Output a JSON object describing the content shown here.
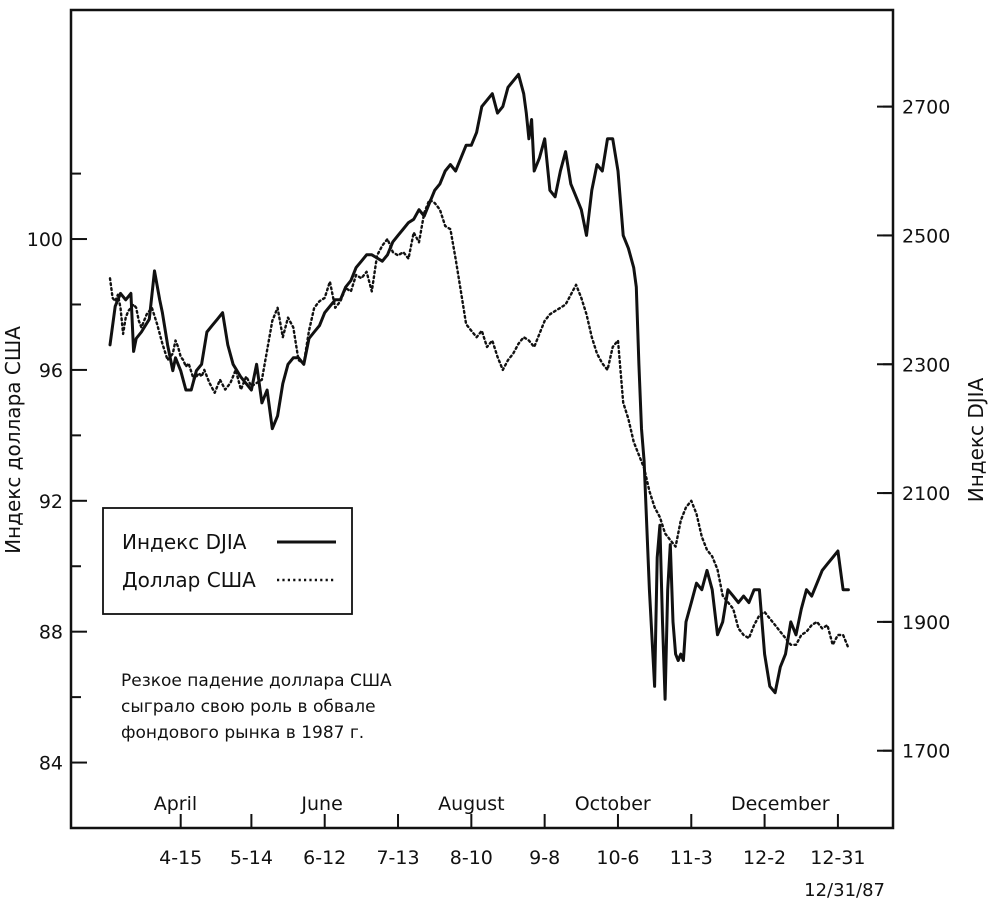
{
  "chart_data": {
    "type": "line",
    "ylabel_left": "Индекс доллара США",
    "ylabel_right": "Индекс DJIA",
    "ylim_left": [
      82,
      107
    ],
    "ylim_right": [
      1580,
      2850
    ],
    "xlim": [
      0,
      283
    ],
    "left_ticks": [
      "84",
      "88",
      "92",
      "96",
      "100"
    ],
    "right_ticks": [
      "1700",
      "1900",
      "2100",
      "2300",
      "2500",
      "2700"
    ],
    "x_ticks": [
      {
        "x": 27,
        "label": "4-15"
      },
      {
        "x": 54,
        "label": "5-14"
      },
      {
        "x": 82,
        "label": "6-12"
      },
      {
        "x": 110,
        "label": "7-13"
      },
      {
        "x": 138,
        "label": "8-10"
      },
      {
        "x": 166,
        "label": "9-8"
      },
      {
        "x": 194,
        "label": "10-6"
      },
      {
        "x": 222,
        "label": "11-3"
      },
      {
        "x": 250,
        "label": "12-2"
      },
      {
        "x": 278,
        "label": "12-31"
      }
    ],
    "months": [
      {
        "x": 25,
        "label": "April"
      },
      {
        "x": 81,
        "label": "June"
      },
      {
        "x": 138,
        "label": "August"
      },
      {
        "x": 192,
        "label": "October"
      },
      {
        "x": 256,
        "label": "December"
      }
    ],
    "date_stamp": "12/31/87",
    "legend": [
      {
        "label": "Индекс DJIA",
        "style": "solid"
      },
      {
        "label": "Доллар США",
        "style": "dotted"
      }
    ],
    "note": [
      "Резкое падение доллара США",
      "сыграло свою роль в обвале",
      "фондового рынка в 1987 г."
    ],
    "series": [
      {
        "name": "Индекс DJIA",
        "axis": "right",
        "style": "solid",
        "x": [
          0,
          2,
          4,
          6,
          8,
          9,
          10,
          12,
          15,
          17,
          19,
          20,
          22,
          24,
          25,
          27,
          29,
          31,
          33,
          35,
          37,
          39,
          41,
          43,
          45,
          47,
          50,
          52,
          54,
          56,
          58,
          60,
          62,
          64,
          66,
          68,
          70,
          72,
          74,
          76,
          78,
          80,
          82,
          84,
          86,
          88,
          90,
          92,
          94,
          96,
          98,
          100,
          102,
          104,
          106,
          108,
          110,
          112,
          114,
          116,
          118,
          120,
          122,
          124,
          126,
          128,
          130,
          132,
          134,
          136,
          138,
          140,
          142,
          144,
          146,
          148,
          150,
          152,
          154,
          156,
          158,
          159,
          160,
          161,
          162,
          164,
          166,
          168,
          170,
          172,
          174,
          176,
          178,
          180,
          182,
          184,
          186,
          188,
          190,
          192,
          194,
          196,
          198,
          200,
          201,
          202,
          203,
          204,
          206,
          208,
          209,
          210,
          211,
          212,
          213,
          214,
          215,
          216,
          217,
          218,
          219,
          220,
          222,
          224,
          226,
          228,
          230,
          232,
          234,
          236,
          238,
          240,
          242,
          244,
          246,
          248,
          250,
          252,
          254,
          256,
          258,
          260,
          262,
          264,
          266,
          268,
          270,
          272,
          274,
          276,
          278,
          280,
          282
        ],
        "y": [
          2330,
          2390,
          2410,
          2400,
          2410,
          2320,
          2340,
          2350,
          2370,
          2445,
          2400,
          2380,
          2330,
          2290,
          2310,
          2290,
          2260,
          2260,
          2290,
          2300,
          2350,
          2360,
          2370,
          2380,
          2330,
          2300,
          2280,
          2270,
          2260,
          2300,
          2240,
          2260,
          2200,
          2220,
          2270,
          2300,
          2310,
          2310,
          2300,
          2340,
          2350,
          2360,
          2380,
          2390,
          2400,
          2400,
          2420,
          2430,
          2450,
          2460,
          2470,
          2470,
          2465,
          2460,
          2470,
          2490,
          2500,
          2510,
          2520,
          2525,
          2540,
          2530,
          2550,
          2570,
          2580,
          2600,
          2610,
          2600,
          2620,
          2640,
          2640,
          2660,
          2700,
          2710,
          2720,
          2690,
          2700,
          2730,
          2740,
          2750,
          2720,
          2690,
          2650,
          2680,
          2600,
          2620,
          2650,
          2570,
          2560,
          2600,
          2630,
          2580,
          2560,
          2540,
          2500,
          2570,
          2610,
          2600,
          2650,
          2650,
          2600,
          2500,
          2480,
          2450,
          2420,
          2300,
          2200,
          2150,
          1950,
          1800,
          2000,
          2050,
          1900,
          1780,
          1950,
          2020,
          1900,
          1850,
          1840,
          1850,
          1840,
          1900,
          1930,
          1960,
          1950,
          1980,
          1950,
          1880,
          1900,
          1950,
          1940,
          1930,
          1940,
          1930,
          1950,
          1950,
          1850,
          1800,
          1790,
          1830,
          1850,
          1900,
          1880,
          1920,
          1950,
          1940,
          1960,
          1980,
          1990,
          2000,
          2010,
          1950,
          1950
        ]
      },
      {
        "name": "Доллар США",
        "axis": "left",
        "style": "dotted",
        "x": [
          0,
          1,
          2,
          3,
          4,
          5,
          6,
          7,
          8,
          9,
          10,
          11,
          12,
          14,
          16,
          18,
          20,
          22,
          24,
          25,
          26,
          27,
          28,
          29,
          30,
          32,
          34,
          35,
          36,
          38,
          40,
          42,
          44,
          46,
          48,
          50,
          52,
          54,
          56,
          58,
          60,
          62,
          64,
          66,
          68,
          70,
          72,
          74,
          76,
          78,
          80,
          82,
          84,
          86,
          88,
          90,
          92,
          94,
          96,
          98,
          100,
          102,
          104,
          106,
          108,
          110,
          112,
          114,
          116,
          118,
          120,
          122,
          124,
          126,
          128,
          130,
          132,
          134,
          136,
          138,
          140,
          142,
          144,
          146,
          148,
          150,
          152,
          154,
          156,
          158,
          160,
          162,
          164,
          166,
          168,
          170,
          172,
          174,
          176,
          178,
          180,
          182,
          184,
          186,
          188,
          190,
          192,
          194,
          196,
          198,
          200,
          202,
          204,
          206,
          208,
          210,
          212,
          214,
          216,
          218,
          220,
          222,
          224,
          226,
          228,
          230,
          232,
          234,
          236,
          238,
          240,
          242,
          244,
          246,
          248,
          250,
          252,
          254,
          256,
          258,
          260,
          262,
          264,
          266,
          268,
          270,
          272,
          274,
          276,
          278,
          280,
          282
        ],
        "y": [
          98.8,
          98.2,
          98.1,
          98.3,
          97.9,
          97.1,
          97.6,
          97.8,
          97.9,
          98.0,
          97.9,
          97.5,
          97.3,
          97.7,
          97.9,
          97.4,
          96.8,
          96.3,
          96.5,
          96.9,
          96.7,
          96.4,
          96.3,
          96.1,
          96.2,
          95.7,
          95.9,
          95.8,
          96.0,
          95.6,
          95.3,
          95.7,
          95.4,
          95.6,
          96.0,
          95.4,
          95.8,
          95.5,
          95.6,
          95.7,
          96.6,
          97.5,
          97.9,
          97.0,
          97.6,
          97.3,
          96.3,
          96.2,
          97.2,
          97.9,
          98.1,
          98.2,
          98.7,
          97.9,
          98.1,
          98.5,
          98.4,
          98.9,
          98.8,
          99.0,
          98.4,
          99.5,
          99.8,
          100.0,
          99.6,
          99.5,
          99.6,
          99.4,
          100.2,
          99.9,
          100.8,
          101.2,
          101.1,
          100.9,
          100.4,
          100.3,
          99.4,
          98.4,
          97.4,
          97.2,
          97.0,
          97.2,
          96.7,
          96.9,
          96.4,
          96.0,
          96.3,
          96.5,
          96.8,
          97.0,
          96.9,
          96.7,
          97.1,
          97.5,
          97.7,
          97.8,
          97.9,
          98.0,
          98.3,
          98.6,
          98.2,
          97.7,
          97.0,
          96.5,
          96.2,
          96.0,
          96.7,
          96.9,
          95.0,
          94.5,
          93.8,
          93.4,
          93.0,
          92.3,
          91.8,
          91.5,
          91.0,
          90.8,
          90.6,
          91.4,
          91.8,
          92.0,
          91.6,
          90.9,
          90.5,
          90.3,
          89.9,
          89.1,
          88.9,
          88.7,
          88.1,
          87.9,
          87.8,
          88.2,
          88.5,
          88.6,
          88.4,
          88.2,
          88.0,
          87.8,
          87.6,
          87.6,
          87.9,
          88.0,
          88.2,
          88.3,
          88.1,
          88.2,
          87.6,
          87.9,
          87.9,
          87.5
        ]
      }
    ]
  }
}
